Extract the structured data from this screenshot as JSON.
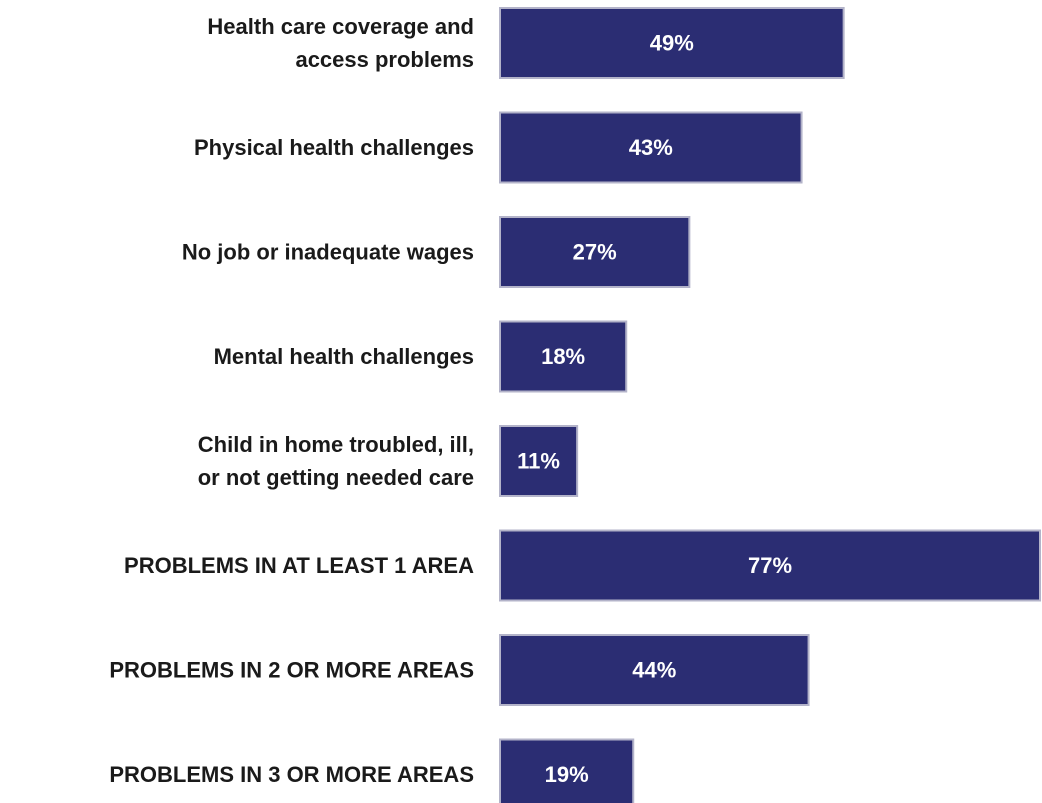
{
  "chart_data": {
    "type": "bar",
    "orientation": "horizontal",
    "title": "",
    "xlabel": "",
    "ylabel": "",
    "categories": [
      "Health care coverage and access problems",
      "Physical health challenges",
      "No job or inadequate wages",
      "Mental health challenges",
      "Child in home troubled, ill, or not getting needed care",
      "PROBLEMS IN AT LEAST 1 AREA",
      "PROBLEMS IN 2 OR MORE AREAS",
      "PROBLEMS IN 3 OR MORE AREAS"
    ],
    "category_lines": [
      [
        "Health care coverage and",
        "access problems"
      ],
      [
        "Physical health challenges"
      ],
      [
        "No job or inadequate wages"
      ],
      [
        "Mental health challenges"
      ],
      [
        "Child in home troubled, ill,",
        "or not getting needed care"
      ],
      [
        "PROBLEMS IN AT LEAST 1 AREA"
      ],
      [
        "PROBLEMS IN 2 OR MORE AREAS"
      ],
      [
        "PROBLEMS IN 3 OR MORE AREAS"
      ]
    ],
    "values": [
      49,
      43,
      27,
      18,
      11,
      77,
      44,
      19
    ],
    "value_labels": [
      "49%",
      "43%",
      "27%",
      "18%",
      "11%",
      "77%",
      "44%",
      "19%"
    ],
    "unit": "%",
    "xlim": [
      0,
      77
    ],
    "grid": false,
    "legend": "none",
    "colors": {
      "bar": "#2b2d73",
      "bar_edge": "#b3b3c9",
      "value_text": "#ffffff",
      "category_text": "#1a1a1a"
    }
  }
}
